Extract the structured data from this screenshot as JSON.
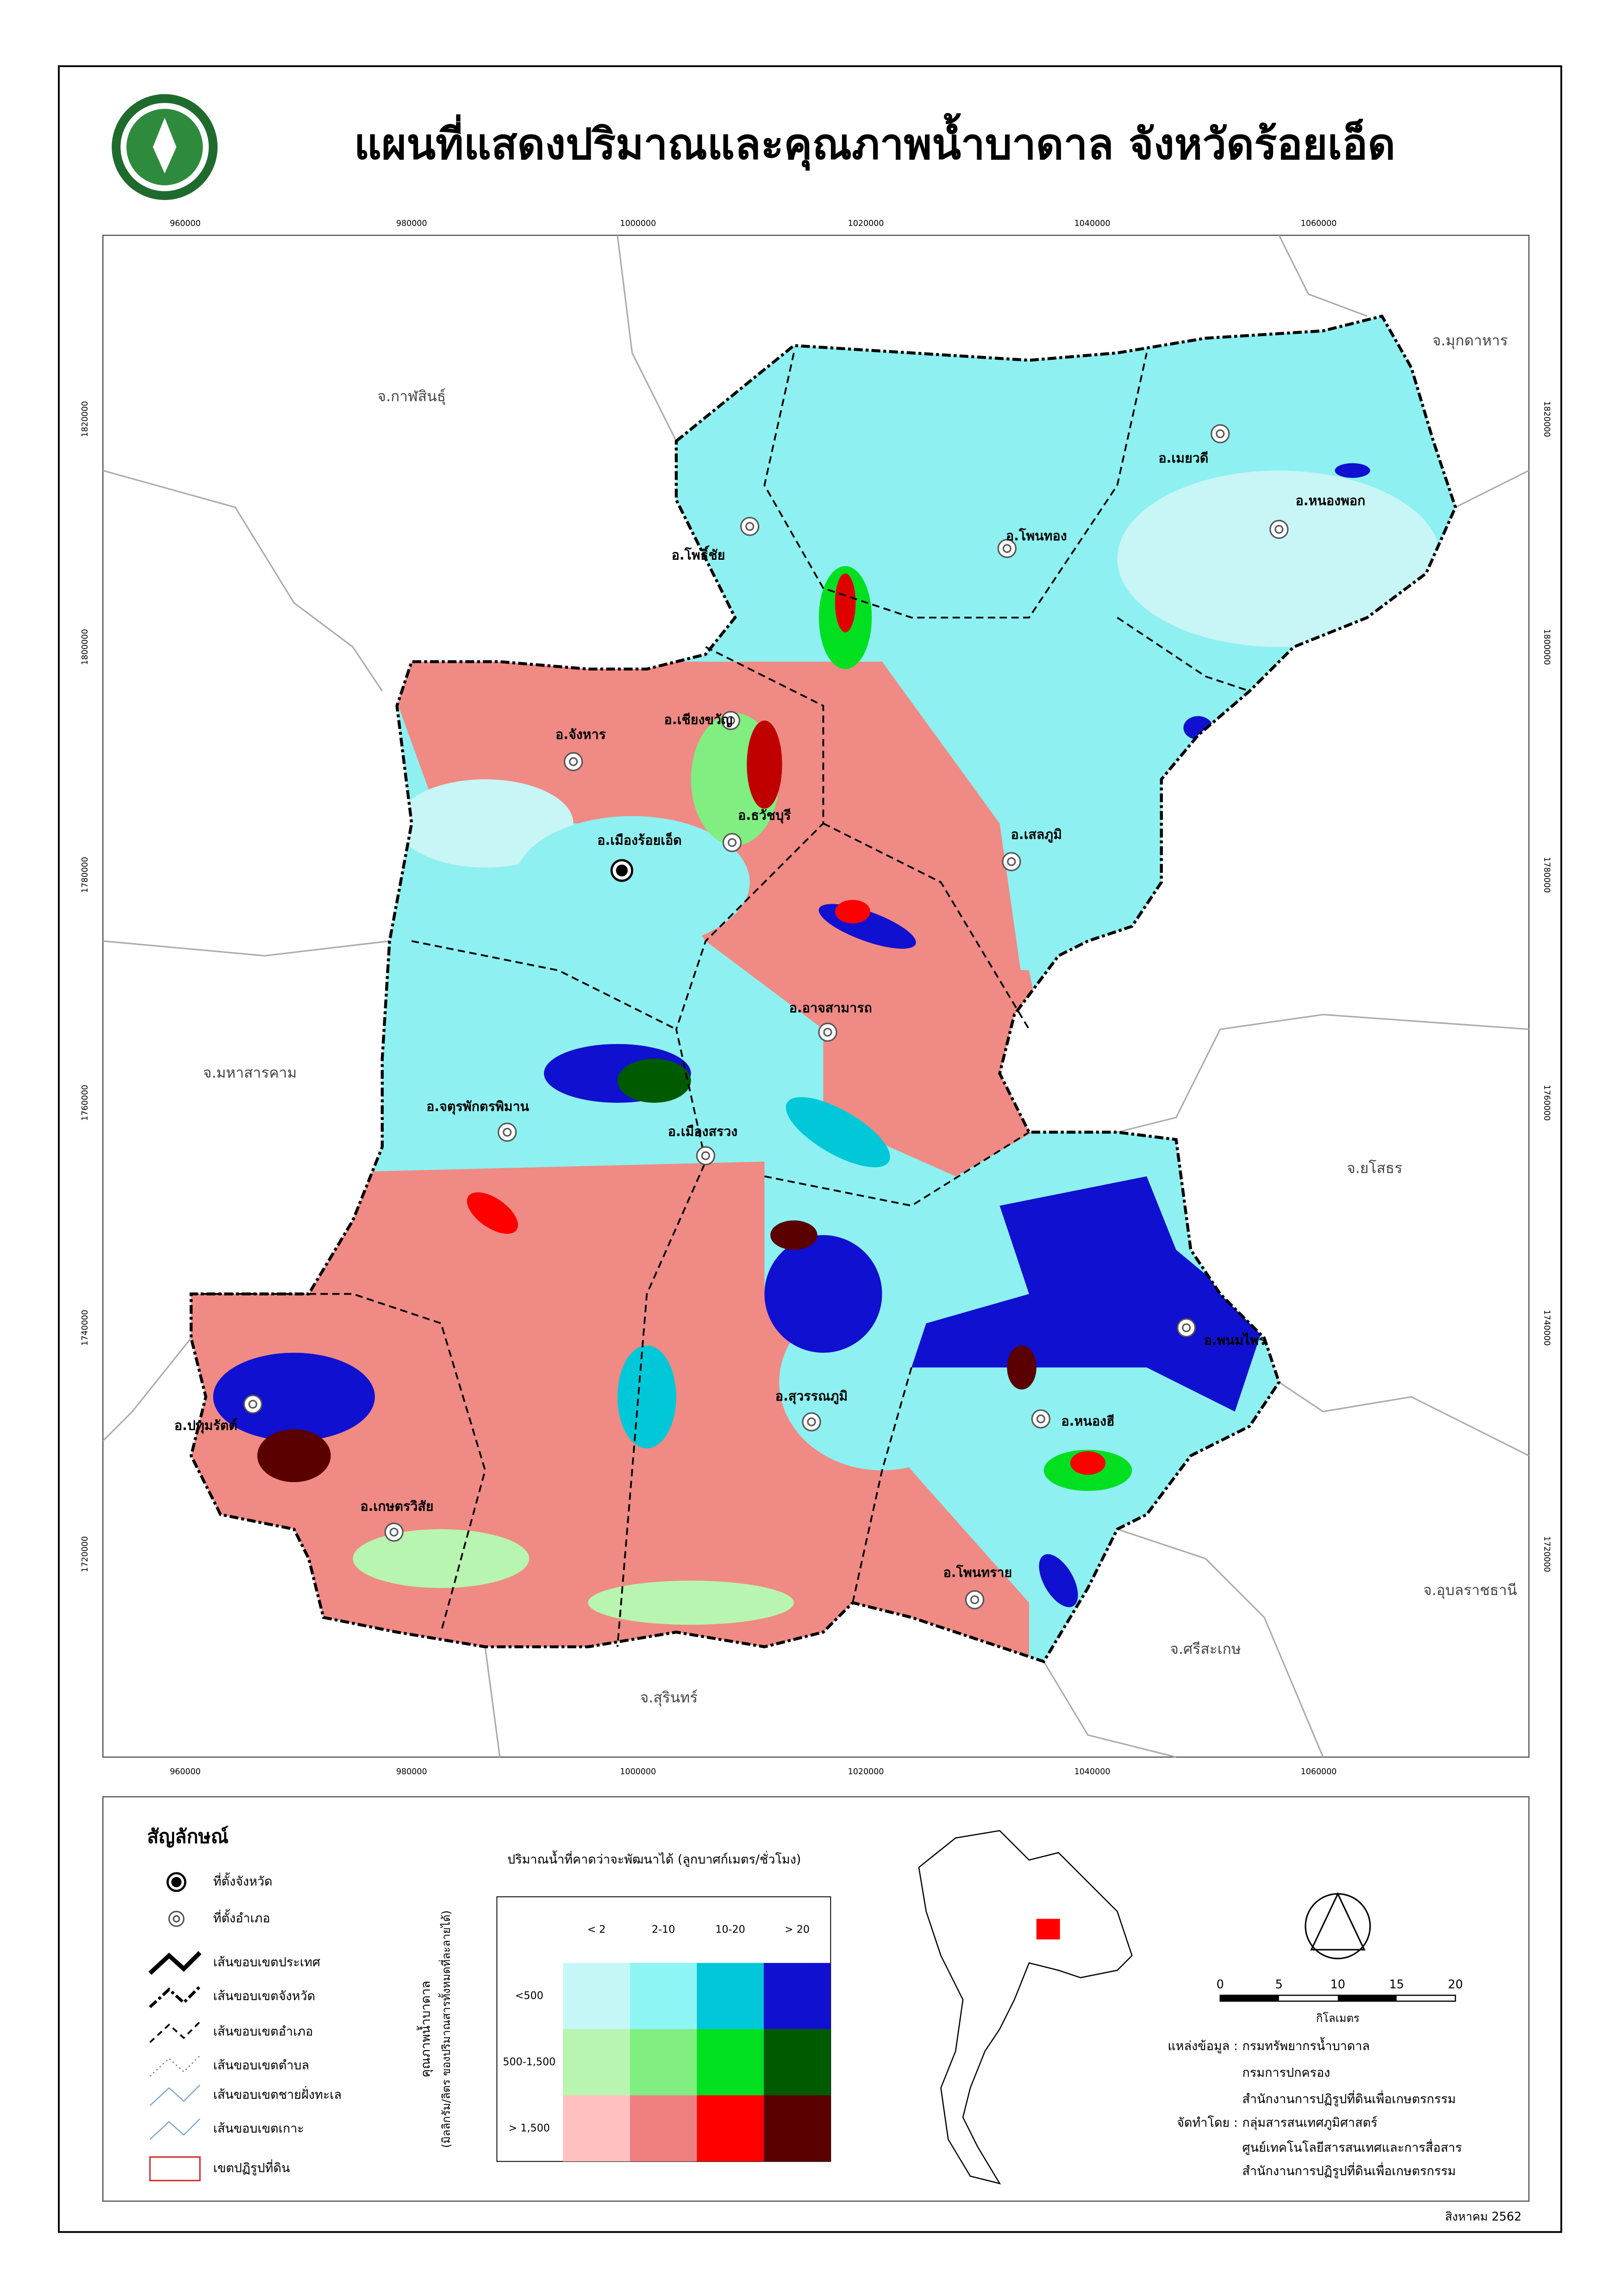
{
  "title": "แผนที่แสดงปริมาณและคุณภาพน้ำบาดาล จังหวัดร้อยเอ็ด",
  "map": {
    "x_coords": [
      "960000",
      "980000",
      "1000000",
      "1020000",
      "1040000",
      "1060000"
    ],
    "y_coords": [
      "1720000",
      "1740000",
      "1760000",
      "1780000",
      "1800000",
      "1820000"
    ],
    "provinces": [
      "จ.มุกดาหาร",
      "จ.กาฬสินธุ์",
      "จ.มหาสารคาม",
      "จ.ยโสธร",
      "จ.อุบลราชธานี",
      "จ.ศรีสะเกษ",
      "จ.สุรินทร์"
    ],
    "province_seat": "อ.เมืองร้อยเอ็ด",
    "districts": [
      "อ.โพธิ์ชัย",
      "อ.โพนทอง",
      "อ.เมยวดี",
      "อ.หนองพอก",
      "อ.เชียงขวัญ",
      "อ.จังหาร",
      "อ.ธวัชบุรี",
      "อ.เสลภูมิ",
      "อ.อาจสามารถ",
      "อ.จตุรพักตรพิมาน",
      "อ.เมืองสรวง",
      "อ.พนมไพร",
      "อ.ปทุมรัตต์",
      "อ.สุวรรณภูมิ",
      "อ.หนองฮี",
      "อ.เกษตรวิสัย",
      "อ.โพนทราย"
    ]
  },
  "legend": {
    "title": "สัญลักษณ์",
    "items": [
      "ที่ตั้งจังหวัด",
      "ที่ตั้งอำเภอ",
      "เส้นขอบเขตประเทศ",
      "เส้นขอบเขตจังหวัด",
      "เส้นขอบเขตอำเภอ",
      "เส้นขอบเขตตำบล",
      "เส้นขอบเขตชายฝั่งทะเล",
      "เส้นขอบเขตเกาะ",
      "เขตปฏิรูปที่ดิน"
    ]
  },
  "matrix": {
    "title": "ปริมาณน้ำที่คาดว่าจะพัฒนาได้ (ลูกบาศก์เมตร/ชั่วโมง)",
    "quality_label": "คุณภาพน้ำบาดาล",
    "quality_unit": "(มิลลิกรัม/ลิตร ของปริมาณสารทั้งหมดที่ละลายได้)",
    "columns": [
      "< 2",
      "2-10",
      "10-20",
      "> 20"
    ],
    "rows": [
      "<500",
      "500-1,500",
      "> 1,500"
    ]
  },
  "scale": {
    "ticks": [
      "0",
      "5",
      "10",
      "15",
      "20"
    ],
    "unit": "กิโลเมตร"
  },
  "credits": {
    "source_label": "แหล่งข้อมูล :",
    "sources": [
      "กรมทรัพยากรน้ำบาดาล",
      "กรมการปกครอง",
      "สำนักงานการปฏิรูปที่ดินเพื่อเกษตรกรรม"
    ],
    "producer_label": "จัดทำโดย :",
    "producers": [
      "กลุ่มสารสนเทศภูมิศาสตร์",
      "ศูนย์เทคโนโลยีสารสนเทศและการสื่อสาร",
      "สำนักงานการปฏิรูปที่ดินเพื่อเกษตรกรรม"
    ]
  },
  "date": "สิงหาคม 2562"
}
